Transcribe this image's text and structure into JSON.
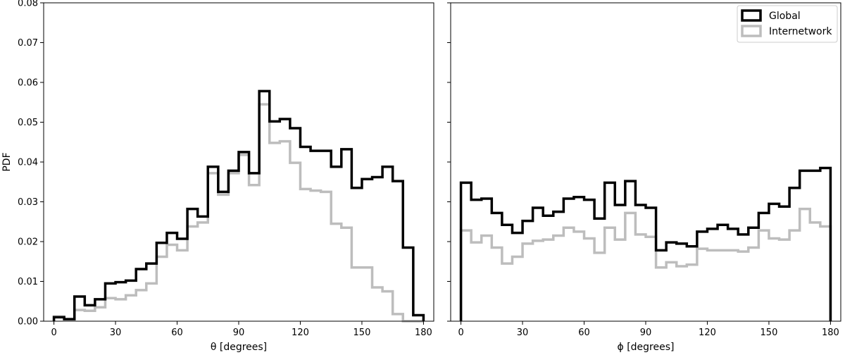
{
  "colors": {
    "global": "#000000",
    "internetwork": "#bdbdbd"
  },
  "chart_data": [
    {
      "type": "histogram",
      "xlabel": "θ [degrees]",
      "ylabel": "PDF",
      "xlim": [
        -5,
        185
      ],
      "ylim": [
        0,
        0.08
      ],
      "xticks": [
        0,
        30,
        60,
        90,
        120,
        150,
        180
      ],
      "xtick_labels": [
        "0",
        "30",
        "60",
        "90",
        "120",
        "150",
        "180"
      ],
      "yticks": [
        0,
        0.01,
        0.02,
        0.03,
        0.04,
        0.05,
        0.06,
        0.07,
        0.08
      ],
      "ytick_labels": [
        "0.00",
        "0.01",
        "0.02",
        "0.03",
        "0.04",
        "0.05",
        "0.06",
        "0.07",
        "0.08"
      ],
      "bin_edges_start": 0,
      "bin_width": 5,
      "series": [
        {
          "name": "Global",
          "values": [
            0.001,
            0.0005,
            0.0062,
            0.004,
            0.0055,
            0.0095,
            0.0098,
            0.0102,
            0.0131,
            0.0145,
            0.0197,
            0.0222,
            0.0207,
            0.0282,
            0.0263,
            0.0388,
            0.0325,
            0.0378,
            0.0425,
            0.0372,
            0.0578,
            0.0502,
            0.0508,
            0.0485,
            0.0438,
            0.0428,
            0.0428,
            0.0388,
            0.0432,
            0.0335,
            0.0357,
            0.0362,
            0.0388,
            0.0352,
            0.0185,
            0.0015
          ]
        },
        {
          "name": "Internetwork",
          "values": [
            0.0012,
            0.0005,
            0.0028,
            0.0026,
            0.0035,
            0.0058,
            0.0055,
            0.0065,
            0.0078,
            0.0095,
            0.0162,
            0.0192,
            0.0178,
            0.0238,
            0.0248,
            0.0372,
            0.0318,
            0.0372,
            0.0418,
            0.0342,
            0.0545,
            0.0448,
            0.0452,
            0.0398,
            0.0332,
            0.0328,
            0.0325,
            0.0245,
            0.0235,
            0.0135,
            0.0135,
            0.0085,
            0.0075,
            0.0018,
            0.0,
            0.0
          ]
        }
      ]
    },
    {
      "type": "histogram",
      "xlabel": "ϕ [degrees]",
      "ylabel": "",
      "xlim": [
        -5,
        185
      ],
      "ylim": [
        0,
        0.08
      ],
      "xticks": [
        0,
        30,
        60,
        90,
        120,
        150,
        180
      ],
      "xtick_labels": [
        "0",
        "30",
        "60",
        "90",
        "120",
        "150",
        "180"
      ],
      "yticks": [
        0,
        0.01,
        0.02,
        0.03,
        0.04,
        0.05,
        0.06,
        0.07,
        0.08
      ],
      "bin_edges_start": 0,
      "bin_width": 5,
      "legend": {
        "position": "top-right",
        "entries": [
          "Global",
          "Internetwork"
        ]
      },
      "series": [
        {
          "name": "Global",
          "values": [
            0.0348,
            0.0305,
            0.0308,
            0.0272,
            0.0242,
            0.0222,
            0.0252,
            0.0285,
            0.0265,
            0.0275,
            0.0308,
            0.0312,
            0.0305,
            0.0258,
            0.0348,
            0.0292,
            0.0352,
            0.0292,
            0.0285,
            0.0178,
            0.0198,
            0.0195,
            0.0188,
            0.0225,
            0.0232,
            0.0242,
            0.0232,
            0.0218,
            0.0235,
            0.0272,
            0.0295,
            0.0288,
            0.0335,
            0.0378,
            0.0378,
            0.0385
          ]
        },
        {
          "name": "Internetwork",
          "values": [
            0.0228,
            0.0198,
            0.0215,
            0.0185,
            0.0145,
            0.0162,
            0.0195,
            0.0202,
            0.0205,
            0.0215,
            0.0235,
            0.0225,
            0.0208,
            0.0172,
            0.0235,
            0.0205,
            0.0272,
            0.0218,
            0.0212,
            0.0135,
            0.0148,
            0.0138,
            0.0142,
            0.0182,
            0.0178,
            0.0178,
            0.0178,
            0.0175,
            0.0185,
            0.0228,
            0.0208,
            0.0205,
            0.0228,
            0.0282,
            0.0248,
            0.0238
          ]
        }
      ]
    }
  ]
}
